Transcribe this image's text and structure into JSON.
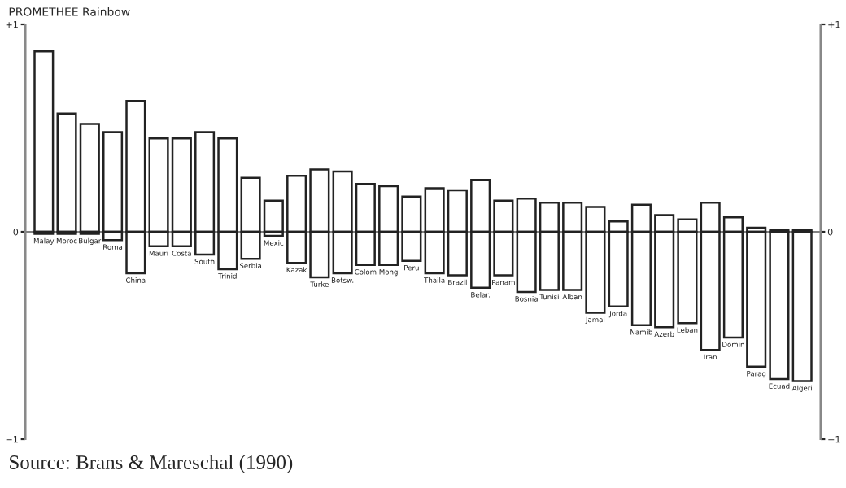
{
  "chart_data": {
    "type": "bar",
    "title": "PROMETHEE Rainbow",
    "stacked": true,
    "categories": [
      "Malay",
      "Moroc",
      "Bulgar",
      "Roma",
      "China",
      "Mauri",
      "Costa",
      "South",
      "Trinid",
      "Serbia",
      "Mexic",
      "Kazak",
      "Turke",
      "Botsw.",
      "Colom",
      "Mong",
      "Peru",
      "Thaila",
      "Brazil",
      "Belar.",
      "Panam",
      "Bosnia",
      "Tunisi",
      "Alban",
      "Jamai",
      "Jorda",
      "Namib",
      "Azerb",
      "Leban",
      "Iran",
      "Domin",
      "Parag",
      "Ecuad",
      "Algeri"
    ],
    "series": [
      {
        "color": "#ffffff",
        "values": [
          0.87,
          0.57,
          0.52,
          0.48,
          0.63,
          0.45,
          0.45,
          0.48,
          0.45,
          0.26,
          0.15,
          0.27,
          0.3,
          0.29,
          0.23,
          0.22,
          0.17,
          0.21,
          0.2,
          0.25,
          0.15,
          0.16,
          0.14,
          0.14,
          0.12,
          0.05,
          0.13,
          0.08,
          0.06,
          0.14,
          0.07,
          0.02,
          0.01,
          0.01
        ]
      },
      {
        "color": "#ffffff",
        "values": [
          -0.01,
          -0.01,
          -0.01,
          -0.04,
          -0.2,
          -0.07,
          -0.07,
          -0.11,
          -0.18,
          -0.13,
          -0.02,
          -0.15,
          -0.22,
          -0.2,
          -0.16,
          -0.16,
          -0.14,
          -0.2,
          -0.21,
          -0.27,
          -0.21,
          -0.29,
          -0.28,
          -0.28,
          -0.39,
          -0.36,
          -0.45,
          -0.46,
          -0.44,
          -0.57,
          -0.51,
          -0.65,
          -0.71,
          -0.72
        ]
      }
    ],
    "ylim": [
      -1,
      1
    ],
    "yticks": [
      {
        "value": -1,
        "label": "−1"
      },
      0,
      {
        "value": 1,
        "label": "+1"
      }
    ],
    "y2lim": [
      -1,
      1
    ],
    "y2ticks": [
      {
        "value": -1,
        "label": "−1"
      },
      0,
      {
        "value": 1,
        "label": "+1"
      }
    ],
    "ref_lines": [
      {
        "axis": "y",
        "value": 0,
        "color": "#808080"
      }
    ],
    "grid": false,
    "legend": false,
    "annotations": [
      "Source: Brans & Mareschal (1990)"
    ]
  }
}
